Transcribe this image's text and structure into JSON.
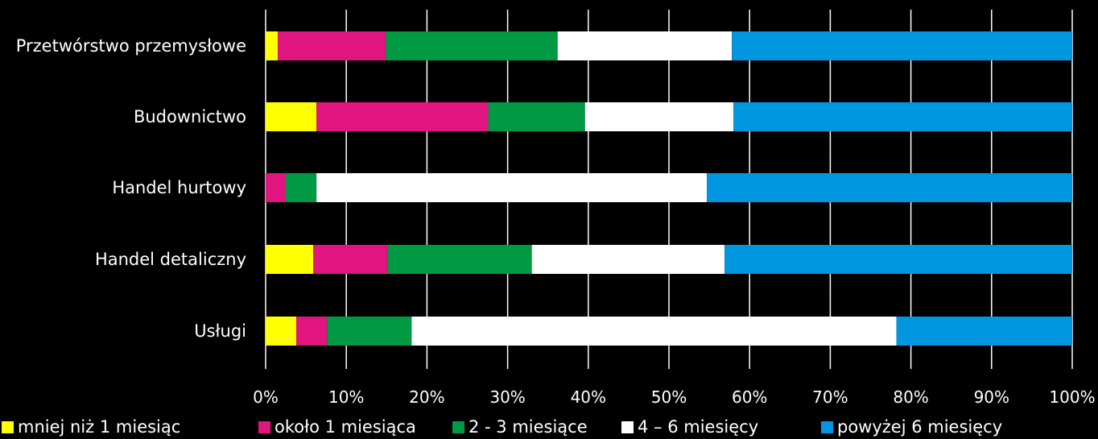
{
  "chart_data": {
    "type": "bar",
    "orientation": "horizontal",
    "stacked": "percent",
    "title": "",
    "xlabel": "",
    "ylabel": "",
    "xlim": [
      0,
      100
    ],
    "x_ticks": [
      "0%",
      "10%",
      "20%",
      "30%",
      "40%",
      "50%",
      "60%",
      "70%",
      "80%",
      "90%",
      "100%"
    ],
    "grid": "vertical",
    "legend_position": "bottom",
    "categories": [
      "Przetwórstwo przemysłowe",
      "Budownictwo",
      "Handel hurtowy",
      "Handel detaliczny",
      "Usługi"
    ],
    "series": [
      {
        "name": "mniej niż 1 miesiąc",
        "color": "#ffff00",
        "values": [
          1.5,
          6.3,
          0.0,
          5.9,
          3.8
        ]
      },
      {
        "name": "około 1 miesiąca",
        "color": "#e0157f",
        "values": [
          13.4,
          21.3,
          2.5,
          9.2,
          3.8
        ]
      },
      {
        "name": "2 - 3 miesiące",
        "color": "#009a44",
        "values": [
          21.3,
          12.0,
          3.8,
          17.9,
          10.5
        ]
      },
      {
        "name": "4 – 6 miesięcy",
        "color": "#ffffff",
        "values": [
          21.6,
          18.4,
          48.4,
          23.9,
          60.1
        ]
      },
      {
        "name": "powyżej 6 miesięcy",
        "color": "#0096e0",
        "values": [
          42.2,
          42.0,
          45.3,
          43.1,
          21.8
        ]
      }
    ]
  }
}
